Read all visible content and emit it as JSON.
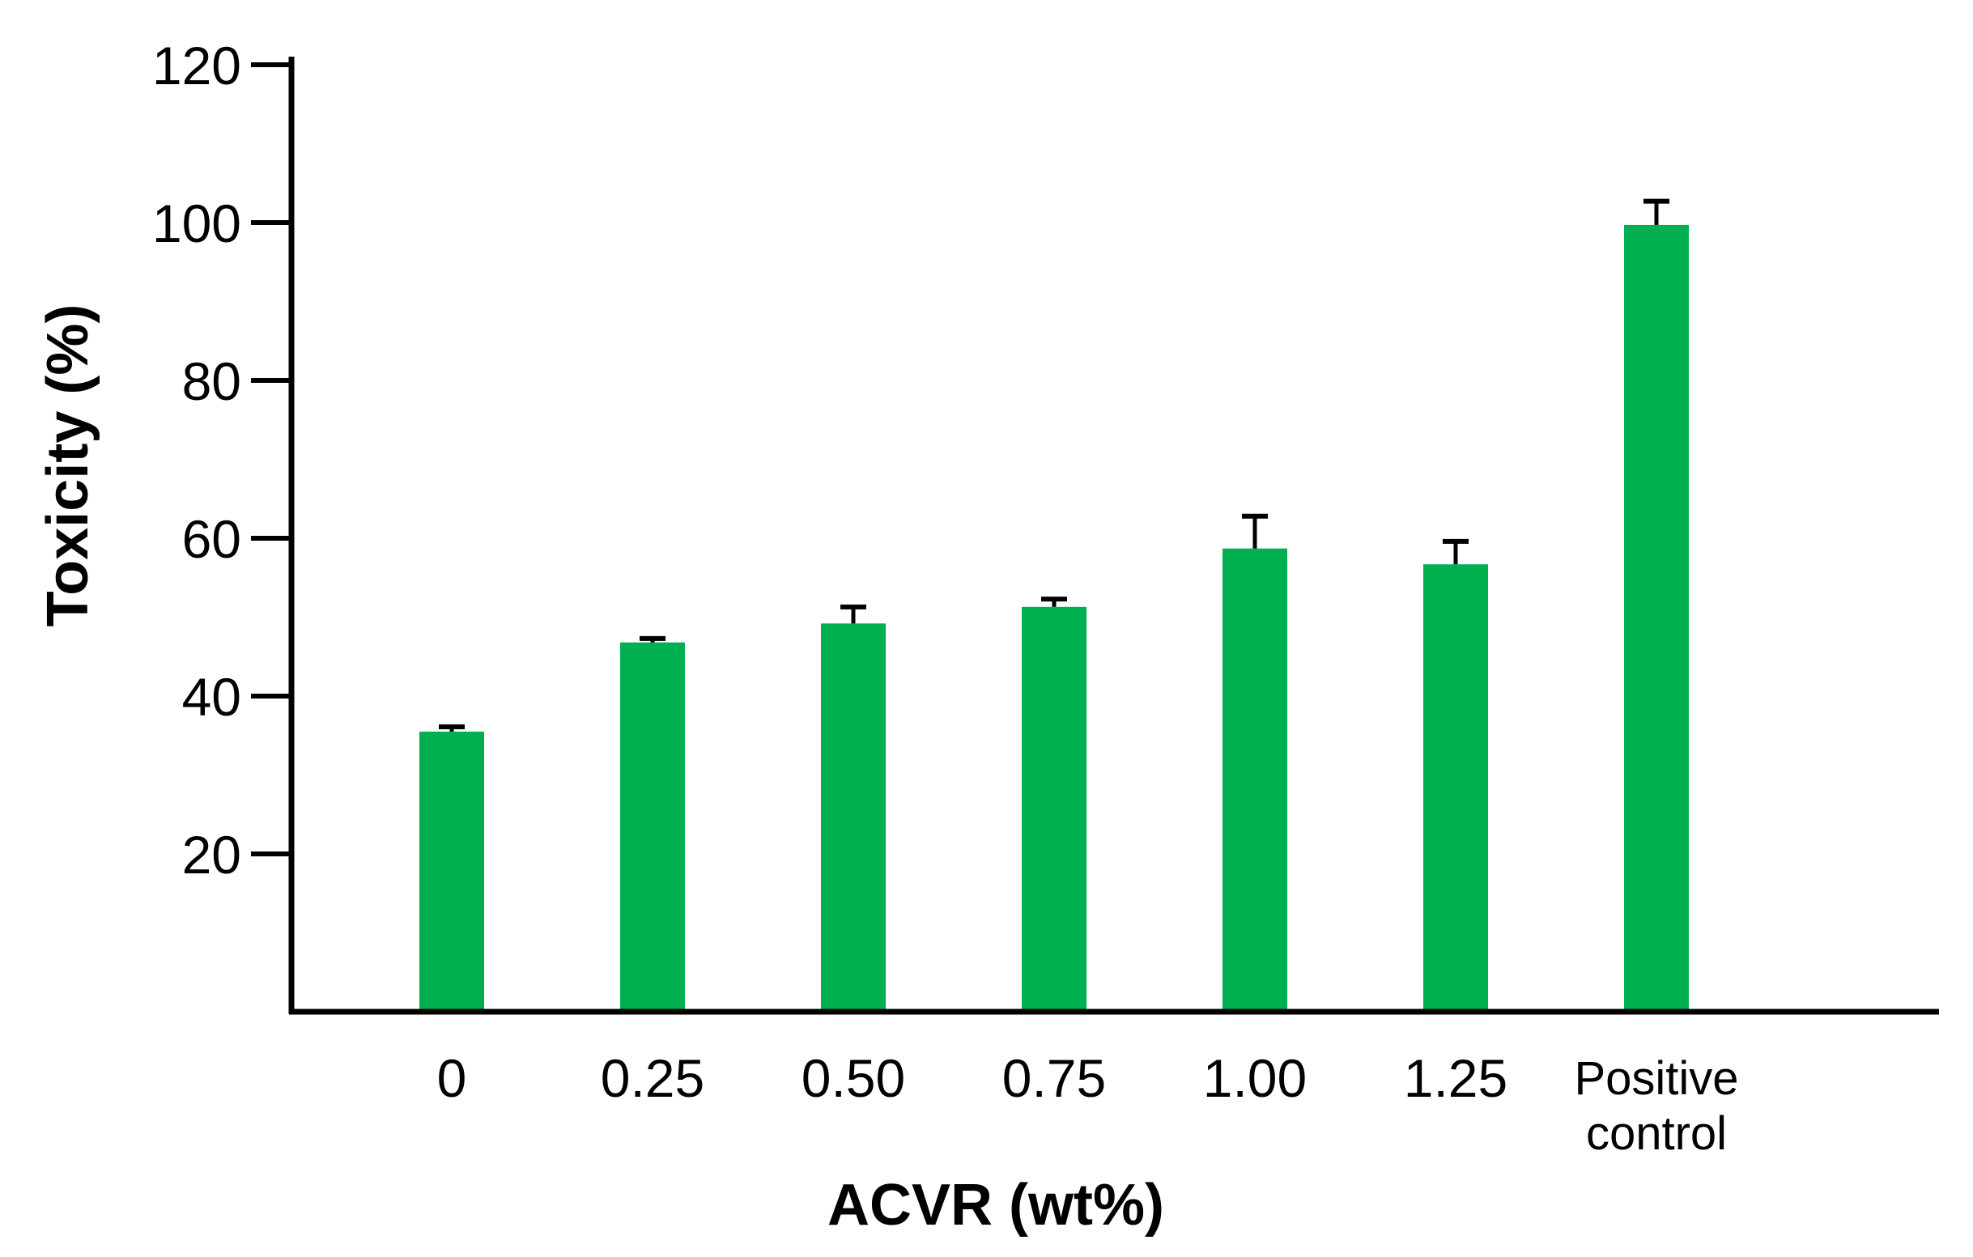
{
  "chart_data": {
    "type": "bar",
    "title": "",
    "xlabel": "ACVR (wt%)",
    "ylabel": "Toxicity (%)",
    "categories": [
      [
        "0"
      ],
      [
        "0.25"
      ],
      [
        "0.50"
      ],
      [
        "0.75"
      ],
      [
        "1.00"
      ],
      [
        "1.25"
      ],
      [
        "Positive",
        "control"
      ]
    ],
    "values": [
      35.5,
      46.8,
      49.2,
      51.3,
      58.7,
      56.7,
      99.7
    ],
    "errors": [
      0.6,
      0.5,
      2.1,
      1.0,
      4.1,
      2.9,
      3.0
    ],
    "ylim": [
      0,
      120
    ],
    "yticks": [
      "20",
      "40",
      "60",
      "80",
      "100",
      "120"
    ],
    "grid": false,
    "legend": "none",
    "bar_color": "#00b050",
    "axis_color": "#000000"
  }
}
